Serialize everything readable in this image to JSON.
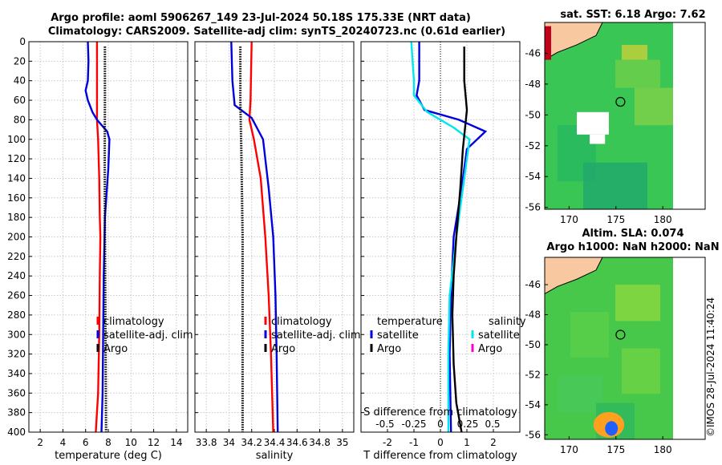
{
  "header": {
    "line1": "Argo profile: aoml 5906267_149 23-Jul-2024 50.18S 175.33E (NRT data)",
    "line2": "Climatology: CARS2009. Satellite-adj clim: synTS_20240723.nc (0.61d earlier)"
  },
  "colors": {
    "clim": "#ff0000",
    "sat": "#0000dd",
    "argo": "#000000",
    "sat_s": "#00e5ee",
    "argo_s": "#ff00cc"
  },
  "chart_data": [
    {
      "type": "line",
      "name": "temperature",
      "xlabel": "temperature (deg C)",
      "xlim": [
        1,
        15
      ],
      "ylim": [
        0,
        400
      ],
      "xticks": [
        "2",
        "4",
        "6",
        "8",
        "10",
        "12",
        "14"
      ],
      "yticks": [
        "0",
        "20",
        "40",
        "60",
        "80",
        "100",
        "120",
        "140",
        "160",
        "180",
        "200",
        "220",
        "240",
        "260",
        "280",
        "300",
        "320",
        "340",
        "360",
        "380",
        "400"
      ],
      "legend": [
        "climatology",
        "satellite-adj. clim",
        "Argo"
      ],
      "series": [
        {
          "name": "climatology",
          "color": "clim",
          "style": "solid",
          "points": [
            [
              7.0,
              0
            ],
            [
              7.0,
              40
            ],
            [
              7.0,
              80
            ],
            [
              7.1,
              100
            ],
            [
              7.2,
              140
            ],
            [
              7.25,
              180
            ],
            [
              7.3,
              200
            ],
            [
              7.25,
              240
            ],
            [
              7.2,
              300
            ],
            [
              7.1,
              360
            ],
            [
              6.9,
              400
            ]
          ]
        },
        {
          "name": "satellite-adj. clim",
          "color": "sat",
          "style": "solid",
          "points": [
            [
              6.2,
              0
            ],
            [
              6.25,
              20
            ],
            [
              6.2,
              40
            ],
            [
              6.0,
              50
            ],
            [
              6.2,
              60
            ],
            [
              6.6,
              72
            ],
            [
              7.0,
              80
            ],
            [
              7.9,
              92
            ],
            [
              8.1,
              100
            ],
            [
              8.0,
              130
            ],
            [
              7.7,
              180
            ],
            [
              7.6,
              240
            ],
            [
              7.55,
              300
            ],
            [
              7.5,
              360
            ],
            [
              7.4,
              400
            ]
          ]
        },
        {
          "name": "Argo",
          "color": "argo",
          "style": "dotted",
          "points": [
            [
              7.7,
              5
            ],
            [
              7.7,
              60
            ],
            [
              7.68,
              120
            ],
            [
              7.7,
              200
            ],
            [
              7.75,
              300
            ],
            [
              7.8,
              400
            ]
          ]
        }
      ]
    },
    {
      "type": "line",
      "name": "salinity",
      "xlabel": "salinity",
      "xlim": [
        33.7,
        35.1
      ],
      "ylim": [
        0,
        400
      ],
      "xticks": [
        "33.8",
        "34",
        "34.2",
        "34.4",
        "34.6",
        "34.8",
        "35"
      ],
      "legend": [
        "climatology",
        "satellite-adj. clim",
        "Argo"
      ],
      "series": [
        {
          "name": "climatology",
          "color": "clim",
          "style": "solid",
          "points": [
            [
              34.2,
              0
            ],
            [
              34.19,
              60
            ],
            [
              34.18,
              80
            ],
            [
              34.22,
              100
            ],
            [
              34.28,
              140
            ],
            [
              34.32,
              200
            ],
            [
              34.35,
              260
            ],
            [
              34.37,
              320
            ],
            [
              34.39,
              400
            ]
          ]
        },
        {
          "name": "satellite-adj. clim",
          "color": "sat",
          "style": "solid",
          "points": [
            [
              34.02,
              0
            ],
            [
              34.03,
              40
            ],
            [
              34.05,
              65
            ],
            [
              34.2,
              78
            ],
            [
              34.3,
              100
            ],
            [
              34.35,
              150
            ],
            [
              34.39,
              200
            ],
            [
              34.41,
              260
            ],
            [
              34.42,
              320
            ],
            [
              34.43,
              400
            ]
          ]
        },
        {
          "name": "Argo",
          "color": "argo",
          "style": "dotted",
          "points": [
            [
              34.1,
              5
            ],
            [
              34.1,
              60
            ],
            [
              34.11,
              120
            ],
            [
              34.12,
              200
            ],
            [
              34.12,
              300
            ],
            [
              34.12,
              400
            ]
          ]
        }
      ]
    },
    {
      "type": "line",
      "name": "difference",
      "xlabel": "T difference from climatology",
      "toplabel": "S difference from climatology",
      "xlim": [
        -3,
        3
      ],
      "ylim": [
        0,
        400
      ],
      "xticks": [
        "-2",
        "-1",
        "0",
        "1",
        "2"
      ],
      "topticks": [
        "-0.5",
        "-0.25",
        "0",
        "0.25",
        "0.5"
      ],
      "legend_left_title": "temperature",
      "legend_right_title": "salinity",
      "legend_left": [
        "satellite",
        "Argo"
      ],
      "legend_right": [
        "satellite",
        "Argo"
      ],
      "series": [
        {
          "name": "T satellite",
          "color": "sat",
          "style": "solid",
          "points": [
            [
              -0.8,
              0
            ],
            [
              -0.8,
              40
            ],
            [
              -0.9,
              55
            ],
            [
              -0.6,
              70
            ],
            [
              0.7,
              80
            ],
            [
              1.7,
              92
            ],
            [
              1.0,
              110
            ],
            [
              0.8,
              150
            ],
            [
              0.5,
              200
            ],
            [
              0.4,
              260
            ],
            [
              0.35,
              320
            ],
            [
              0.4,
              400
            ]
          ]
        },
        {
          "name": "S satellite",
          "color": "sat_s",
          "style": "solid",
          "points": [
            [
              -1.1,
              0
            ],
            [
              -1.0,
              40
            ],
            [
              -1.0,
              55
            ],
            [
              -0.5,
              72
            ],
            [
              0.5,
              88
            ],
            [
              1.1,
              100
            ],
            [
              0.9,
              140
            ],
            [
              0.6,
              200
            ],
            [
              0.35,
              260
            ],
            [
              0.3,
              320
            ],
            [
              0.3,
              400
            ]
          ]
        },
        {
          "name": "T Argo",
          "color": "argo",
          "style": "solid",
          "points": [
            [
              0.9,
              5
            ],
            [
              0.9,
              40
            ],
            [
              1.0,
              70
            ],
            [
              0.85,
              110
            ],
            [
              0.75,
              150
            ],
            [
              0.6,
              200
            ],
            [
              0.5,
              240
            ],
            [
              0.45,
              280
            ],
            [
              0.5,
              330
            ],
            [
              0.6,
              370
            ],
            [
              0.8,
              400
            ]
          ]
        }
      ]
    }
  ],
  "map_sst": {
    "title": "sat. SST: 6.18 Argo: 7.62",
    "yticks": [
      "-46",
      "-48",
      "-50",
      "-52",
      "-54",
      "-56"
    ],
    "xticks": [
      "170",
      "175",
      "180"
    ]
  },
  "map_sla": {
    "title1": "Altim. SLA: 0.074",
    "title2": "Argo h1000: NaN h2000: NaN",
    "yticks": [
      "-46",
      "-48",
      "-50",
      "-52",
      "-54",
      "-56"
    ],
    "xticks": [
      "170",
      "175",
      "180"
    ]
  },
  "timestamp": "©IMOS 28-Jul-2024 11:40:24"
}
